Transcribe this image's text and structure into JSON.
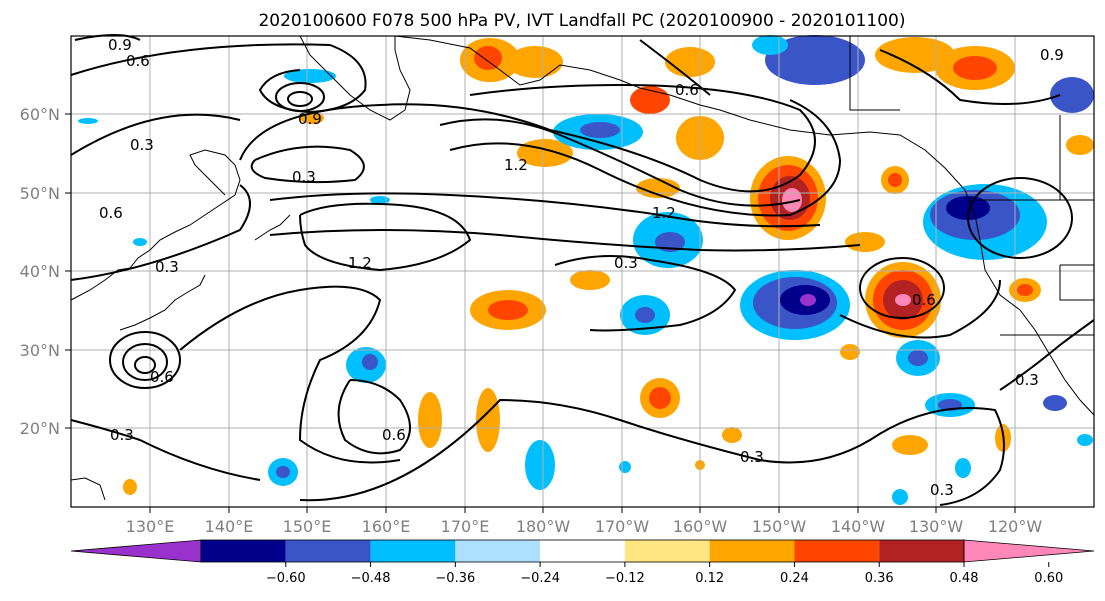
{
  "title": "2020100600 F078 500 hPa PV, IVT Landfall PC (2020100900 - 2020101100)",
  "map": {
    "lon_labels": [
      "130°E",
      "140°E",
      "150°E",
      "160°E",
      "170°E",
      "180°W",
      "170°W",
      "160°W",
      "150°W",
      "140°W",
      "130°W",
      "120°W"
    ],
    "lat_labels": [
      "60°N",
      "50°N",
      "40°N",
      "30°N",
      "20°N"
    ],
    "contour_labels": [
      "0.9",
      "0.6",
      "0.3",
      "0.3",
      "0.6",
      "1.2",
      "1.2",
      "1.2",
      "0.3",
      "0.3",
      "0.6",
      "0.6",
      "0.3",
      "0.6",
      "0.3",
      "0.3",
      "0.9",
      "0.6",
      "0.9",
      "0.3"
    ]
  },
  "colorbar": {
    "ticks": [
      "−0.60",
      "−0.48",
      "−0.36",
      "−0.24",
      "−0.12",
      "0.12",
      "0.24",
      "0.36",
      "0.48",
      "0.60"
    ],
    "colors": [
      "#9932CC",
      "#00008B",
      "#3A55C8",
      "#00BFFF",
      "#ADDFFF",
      "#FFFFFF",
      "#FFE680",
      "#FFA500",
      "#FF4500",
      "#B22222",
      "#FF88B8"
    ]
  }
}
